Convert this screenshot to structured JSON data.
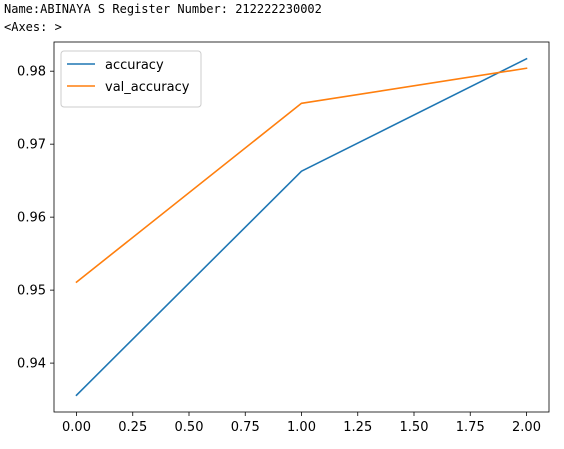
{
  "output": {
    "name_line": "Name:ABINAYA S Register Number: 212222230002",
    "axes_repr": "<Axes: >"
  },
  "chart_data": {
    "type": "line",
    "x": [
      0,
      1,
      2
    ],
    "series": [
      {
        "name": "accuracy",
        "color": "#1f77b4",
        "values": [
          0.9356,
          0.9663,
          0.9817
        ]
      },
      {
        "name": "val_accuracy",
        "color": "#ff7f0e",
        "values": [
          0.9511,
          0.9756,
          0.9804
        ]
      }
    ],
    "xlim": [
      -0.1,
      2.1
    ],
    "ylim": [
      0.9333,
      0.984
    ],
    "xticks": [
      0.0,
      0.25,
      0.5,
      0.75,
      1.0,
      1.25,
      1.5,
      1.75,
      2.0
    ],
    "xtick_labels": [
      "0.00",
      "0.25",
      "0.50",
      "0.75",
      "1.00",
      "1.25",
      "1.50",
      "1.75",
      "2.00"
    ],
    "yticks": [
      0.94,
      0.95,
      0.96,
      0.97,
      0.98
    ],
    "ytick_labels": [
      "0.94",
      "0.95",
      "0.96",
      "0.97",
      "0.98"
    ],
    "title": "",
    "xlabel": "",
    "ylabel": "",
    "grid": false,
    "legend_position": "upper-left"
  }
}
